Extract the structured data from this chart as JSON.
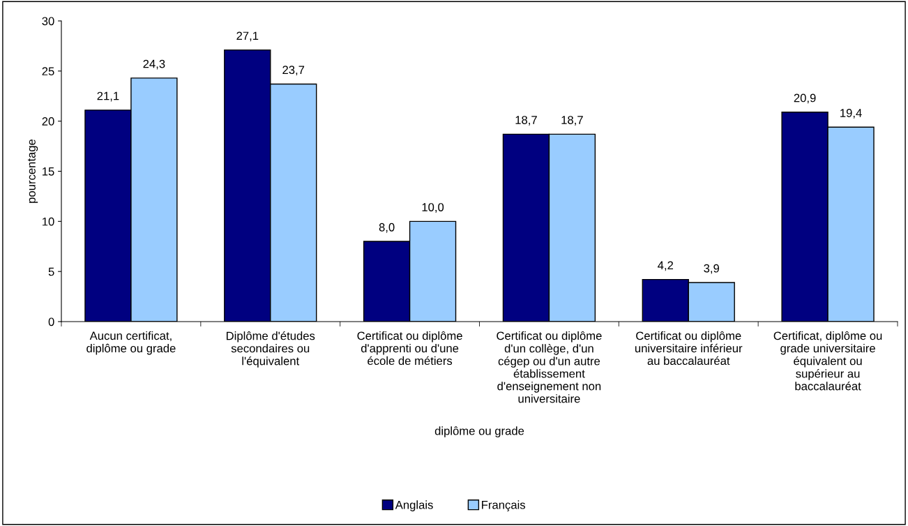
{
  "chart_data": {
    "type": "bar",
    "xlabel": "diplôme ou grade",
    "ylabel": "pourcentage",
    "categories": [
      "Aucun certificat,\ndiplôme ou grade",
      "Diplôme d'études\nsecondaires ou\nl'équivalent",
      "Certificat ou diplôme\nd'apprenti ou d'une\nécole de métiers",
      "Certificat ou diplôme\nd'un collège, d'un\ncégep ou d'un autre\nétablissement\nd'enseignement non\nuniversitaire",
      "Certificat ou diplôme\nuniversitaire inférieur\nau baccalauréat",
      "Certificat, diplôme ou\ngrade universitaire\néquivalent ou\nsupérieur au\nbaccalauréat"
    ],
    "series": [
      {
        "name": "Anglais",
        "color": "#000080",
        "values": [
          21.1,
          27.1,
          8.0,
          18.7,
          4.2,
          20.9
        ],
        "value_labels": [
          "21,1",
          "27,1",
          "8,0",
          "18,7",
          "4,2",
          "20,9"
        ]
      },
      {
        "name": "Français",
        "color": "#99ccff",
        "values": [
          24.3,
          23.7,
          10.0,
          18.7,
          3.9,
          19.4
        ],
        "value_labels": [
          "24,3",
          "23,7",
          "10,0",
          "18,7",
          "3,9",
          "19,4"
        ]
      }
    ],
    "ylim": [
      0,
      30
    ],
    "yticks": [
      0,
      5,
      10,
      15,
      20,
      25,
      30
    ],
    "grid": false,
    "legend": "bottom"
  }
}
